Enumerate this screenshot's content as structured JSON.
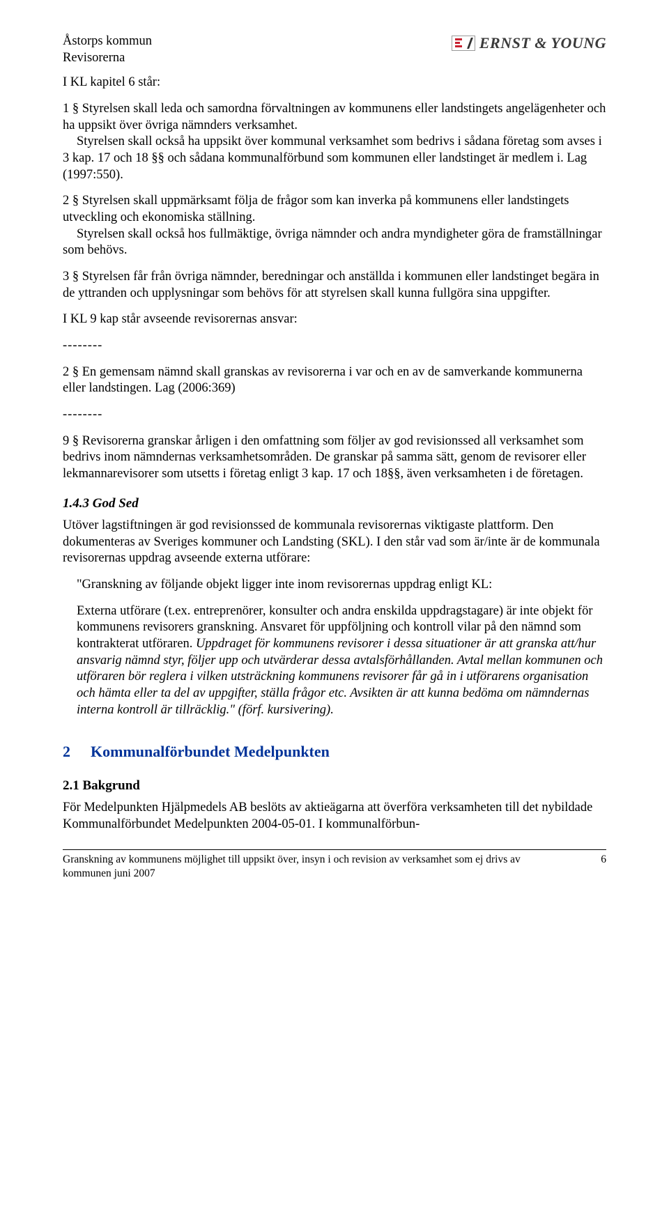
{
  "header": {
    "org": "Åstorps kommun",
    "unit": "Revisorerna",
    "logo_text": "ERNST & YOUNG"
  },
  "intro": "I KL kapitel 6 står:",
  "p1a": "1 § Styrelsen skall leda och samordna förvaltningen av kommunens eller landstingets angelägenheter och ha uppsikt över övriga nämnders verksamhet.",
  "p1b": "Styrelsen skall också ha uppsikt över kommunal verksamhet som bedrivs i sådana företag som avses i 3 kap. 17 och 18 §§ och sådana kommunalförbund som kommunen eller landstinget är medlem i. Lag (1997:550).",
  "p2a": "2 § Styrelsen skall uppmärksamt följa de frågor som kan inverka på kommunens eller landstingets utveckling och ekonomiska ställning.",
  "p2b": "Styrelsen skall också hos fullmäktige, övriga nämnder och andra myndigheter göra de framställningar som behövs.",
  "p3": "3 § Styrelsen får från övriga nämnder, beredningar och anställda i kommunen eller landstinget begära in de yttranden och upplysningar som behövs för att styrelsen skall kunna fullgöra sina uppgifter.",
  "kl9": "I KL 9 kap står avseende revisorernas ansvar:",
  "sep": "--------",
  "p2_9": "2 § En gemensam nämnd skall granskas av revisorerna i var och en av de samverkande kommunerna eller landstingen. Lag (2006:369)",
  "p9_9": "9 § Revisorerna granskar årligen i den omfattning som följer av god revisionssed all verksamhet som bedrivs inom nämndernas verksamhetsområden. De granskar på samma sätt, genom de revisorer eller lekmannarevisorer som utsetts i företag enligt 3 kap. 17 och 18§§, även verksamheten i de företagen.",
  "sub143": "1.4.3  God Sed",
  "godsed1": "Utöver lagstiftningen är god revisionssed de kommunala revisorernas viktigaste plattform. Den dokumenteras av Sveriges kommuner och Landsting (SKL). I den står vad som är/inte är de kommunala revisorernas uppdrag avseende externa utförare:",
  "quote1": "\"Granskning av följande objekt ligger inte inom revisorernas uppdrag enligt KL:",
  "quote2a": "Externa utförare (t.ex. entreprenörer, konsulter och andra enskilda uppdragstagare) är inte objekt för kommunens revisorers granskning. Ansvaret för uppföljning och kontroll vilar på den nämnd som kontrakterat utföraren. ",
  "quote2b": "Uppdraget för kommunens revisorer i dessa situationer är att granska att/hur ansvarig nämnd styr, följer upp och utvärderar dessa avtalsförhållanden. Avtal mellan kommunen och utföraren bör reglera i vilken utsträckning kommunens revisorer får gå in i utförarens organisation och hämta eller ta del av uppgifter, ställa frågor etc. Avsikten är att kunna bedöma om nämndernas interna kontroll är tillräcklig.\" (förf. kursivering).",
  "section2_num": "2",
  "section2_title": "Kommunalförbundet Medelpunkten",
  "sub21": "2.1    Bakgrund",
  "bakgrund": "För Medelpunkten Hjälpmedels AB beslöts av aktieägarna att överföra verksamheten till det nybildade Kommunalförbundet Medelpunkten 2004-05-01.  I kommunalförbun-",
  "footer_text": "Granskning av kommunens möjlighet till uppsikt över, insyn i och revision av verksamhet som ej drivs av kommunen juni 2007",
  "page_number": "6"
}
